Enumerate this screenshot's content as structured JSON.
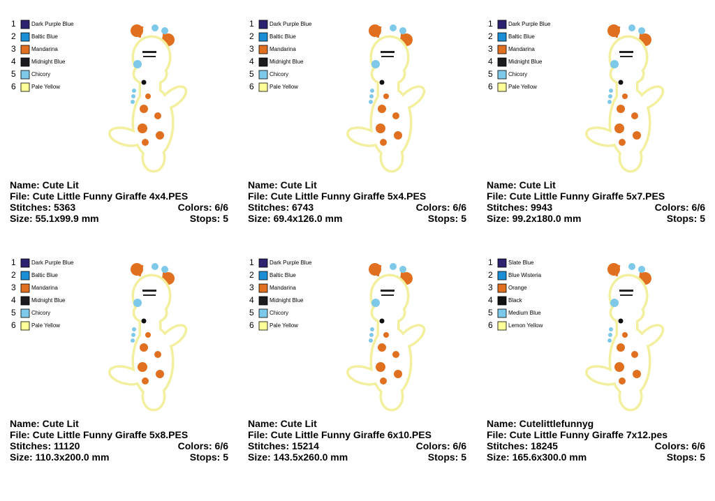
{
  "panels": [
    {
      "colors": [
        {
          "number": 1,
          "name": "Dark Purple Blue",
          "color": "#2b2270"
        },
        {
          "number": 2,
          "name": "Baltic Blue",
          "color": "#1a8fd6"
        },
        {
          "number": 3,
          "name": "Mandarina",
          "color": "#e07020"
        },
        {
          "number": 4,
          "name": "Midnight Blue",
          "color": "#1c1a1e"
        },
        {
          "number": 5,
          "name": "Chicory",
          "color": "#7ec8ea"
        },
        {
          "number": 6,
          "name": "Pale Yellow",
          "color": "#ffff99"
        }
      ],
      "name": "Name: Cute Lit",
      "file": "File: Cute Little Funny Giraffe 4x4.PES",
      "stitches": "Stitches: 5363",
      "colors_count": "Colors: 6/6",
      "size": "Size: 55.1x99.9 mm",
      "stops": "Stops: 5"
    },
    {
      "colors": [
        {
          "number": 1,
          "name": "Dark Purple Blue",
          "color": "#2b2270"
        },
        {
          "number": 2,
          "name": "Baltic Blue",
          "color": "#1a8fd6"
        },
        {
          "number": 3,
          "name": "Mandarina",
          "color": "#e07020"
        },
        {
          "number": 4,
          "name": "Midnight Blue",
          "color": "#1c1a1e"
        },
        {
          "number": 5,
          "name": "Chicory",
          "color": "#7ec8ea"
        },
        {
          "number": 6,
          "name": "Pale Yellow",
          "color": "#ffff99"
        }
      ],
      "name": "Name: Cute Lit",
      "file": "File: Cute Little Funny Giraffe 5x4.PES",
      "stitches": "Stitches: 6743",
      "colors_count": "Colors: 6/6",
      "size": "Size: 69.4x126.0 mm",
      "stops": "Stops: 5"
    },
    {
      "colors": [
        {
          "number": 1,
          "name": "Dark Purple Blue",
          "color": "#2b2270"
        },
        {
          "number": 2,
          "name": "Baltic Blue",
          "color": "#1a8fd6"
        },
        {
          "number": 3,
          "name": "Mandarina",
          "color": "#e07020"
        },
        {
          "number": 4,
          "name": "Midnight Blue",
          "color": "#1c1a1e"
        },
        {
          "number": 5,
          "name": "Chicory",
          "color": "#7ec8ea"
        },
        {
          "number": 6,
          "name": "Pale Yellow",
          "color": "#ffff99"
        }
      ],
      "name": "Name: Cute Lit",
      "file": "File: Cute Little Funny Giraffe 5x7.PES",
      "stitches": "Stitches: 9943",
      "colors_count": "Colors: 6/6",
      "size": "Size: 99.2x180.0 mm",
      "stops": "Stops: 5"
    },
    {
      "colors": [
        {
          "number": 1,
          "name": "Dark Purple Blue",
          "color": "#2b2270"
        },
        {
          "number": 2,
          "name": "Baltic Blue",
          "color": "#1a8fd6"
        },
        {
          "number": 3,
          "name": "Mandarina",
          "color": "#e07020"
        },
        {
          "number": 4,
          "name": "Midnight Blue",
          "color": "#1c1a1e"
        },
        {
          "number": 5,
          "name": "Chicory",
          "color": "#7ec8ea"
        },
        {
          "number": 6,
          "name": "Pale Yellow",
          "color": "#ffff99"
        }
      ],
      "name": "Name: Cute Lit",
      "file": "File: Cute Little Funny Giraffe 5x8.PES",
      "stitches": "Stitches: 11120",
      "colors_count": "Colors: 6/6",
      "size": "Size: 110.3x200.0 mm",
      "stops": "Stops: 5"
    },
    {
      "colors": [
        {
          "number": 1,
          "name": "Dark Purple Blue",
          "color": "#2b2270"
        },
        {
          "number": 2,
          "name": "Baltic Blue",
          "color": "#1a8fd6"
        },
        {
          "number": 3,
          "name": "Mandarina",
          "color": "#e07020"
        },
        {
          "number": 4,
          "name": "Midnight Blue",
          "color": "#1c1a1e"
        },
        {
          "number": 5,
          "name": "Chicory",
          "color": "#7ec8ea"
        },
        {
          "number": 6,
          "name": "Pale Yellow",
          "color": "#ffff99"
        }
      ],
      "name": "Name: Cute Lit",
      "file": "File: Cute Little Funny Giraffe 6x10.PES",
      "stitches": "Stitches: 15214",
      "colors_count": "Colors: 6/6",
      "size": "Size: 143.5x260.0 mm",
      "stops": "Stops: 5"
    },
    {
      "colors": [
        {
          "number": 1,
          "name": "Slate Blue",
          "color": "#2b2270"
        },
        {
          "number": 2,
          "name": "Blue Wisteria",
          "color": "#1a8fd6"
        },
        {
          "number": 3,
          "name": "Orange",
          "color": "#e07020"
        },
        {
          "number": 4,
          "name": "Black",
          "color": "#111111"
        },
        {
          "number": 5,
          "name": "Medium Blue",
          "color": "#7ec8ea"
        },
        {
          "number": 6,
          "name": "Lemon Yellow",
          "color": "#ffff99"
        }
      ],
      "name": "Name: Cutelittlefunnyg",
      "file": "File: Cute Little Funny Giraffe 7x12.pes",
      "stitches": "Stitches: 18245",
      "colors_count": "Colors: 6/6",
      "size": "Size: 165.6x300.0 mm",
      "stops": "Stops: 5"
    }
  ]
}
